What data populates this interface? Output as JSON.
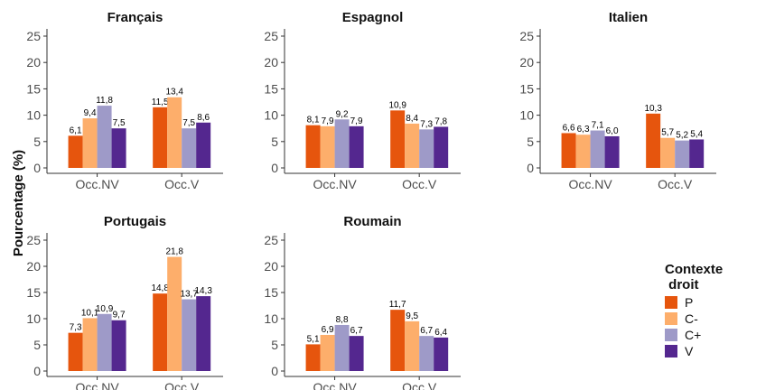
{
  "chart_data": {
    "type": "bar",
    "ylabel": "Pourcentage (%)",
    "ylim": [
      0,
      25
    ],
    "yticks": [
      0,
      5,
      10,
      15,
      20,
      25
    ],
    "categories": [
      "Occ.NV",
      "Occ.V"
    ],
    "legend": {
      "title_lines": [
        "Contexte",
        " droit"
      ],
      "placement": "right"
    },
    "series_meta": [
      {
        "name": "P",
        "color": "#E6550D"
      },
      {
        "name": "C-",
        "color": "#FDAE6B"
      },
      {
        "name": "C+",
        "color": "#9E9AC8"
      },
      {
        "name": "V",
        "color": "#54278F"
      }
    ],
    "panels": [
      {
        "title": "Français",
        "series": [
          {
            "name": "P",
            "values": [
              6.1,
              11.5
            ]
          },
          {
            "name": "C-",
            "values": [
              9.4,
              13.4
            ]
          },
          {
            "name": "C+",
            "values": [
              11.8,
              7.5
            ]
          },
          {
            "name": "V",
            "values": [
              7.5,
              8.6
            ]
          }
        ],
        "labels": [
          [
            "6,1",
            "11,5"
          ],
          [
            "9,4",
            "13,4"
          ],
          [
            "11,8",
            "7,5"
          ],
          [
            "7,5",
            "8,6"
          ]
        ]
      },
      {
        "title": "Espagnol",
        "series": [
          {
            "name": "P",
            "values": [
              8.1,
              10.9
            ]
          },
          {
            "name": "C-",
            "values": [
              7.9,
              8.4
            ]
          },
          {
            "name": "C+",
            "values": [
              9.2,
              7.3
            ]
          },
          {
            "name": "V",
            "values": [
              7.9,
              7.8
            ]
          }
        ],
        "labels": [
          [
            "8,1",
            "10,9"
          ],
          [
            "7,9",
            "8,4"
          ],
          [
            "9,2",
            "7,3"
          ],
          [
            "7,9",
            "7,8"
          ]
        ]
      },
      {
        "title": "Italien",
        "series": [
          {
            "name": "P",
            "values": [
              6.6,
              10.3
            ]
          },
          {
            "name": "C-",
            "values": [
              6.3,
              5.7
            ]
          },
          {
            "name": "C+",
            "values": [
              7.1,
              5.2
            ]
          },
          {
            "name": "V",
            "values": [
              6.0,
              5.4
            ]
          }
        ],
        "labels": [
          [
            "6,6",
            "10,3"
          ],
          [
            "6,3",
            "5,7"
          ],
          [
            "7,1",
            "5,2"
          ],
          [
            "6,0",
            "5,4"
          ]
        ]
      },
      {
        "title": "Portugais",
        "series": [
          {
            "name": "P",
            "values": [
              7.3,
              14.8
            ]
          },
          {
            "name": "C-",
            "values": [
              10.1,
              21.8
            ]
          },
          {
            "name": "C+",
            "values": [
              10.9,
              13.7
            ]
          },
          {
            "name": "V",
            "values": [
              9.7,
              14.3
            ]
          }
        ],
        "labels": [
          [
            "7,3",
            "14,8"
          ],
          [
            "10,1",
            "21,8"
          ],
          [
            "10,9",
            "13,7"
          ],
          [
            "9,7",
            "14,3"
          ]
        ]
      },
      {
        "title": "Roumain",
        "series": [
          {
            "name": "P",
            "values": [
              5.1,
              11.7
            ]
          },
          {
            "name": "C-",
            "values": [
              6.9,
              9.5
            ]
          },
          {
            "name": "C+",
            "values": [
              8.8,
              6.7
            ]
          },
          {
            "name": "V",
            "values": [
              6.7,
              6.4
            ]
          }
        ],
        "labels": [
          [
            "5,1",
            "11,7"
          ],
          [
            "6,9",
            "9,5"
          ],
          [
            "8,8",
            "6,7"
          ],
          [
            "6,7",
            "6,4"
          ]
        ]
      }
    ]
  }
}
